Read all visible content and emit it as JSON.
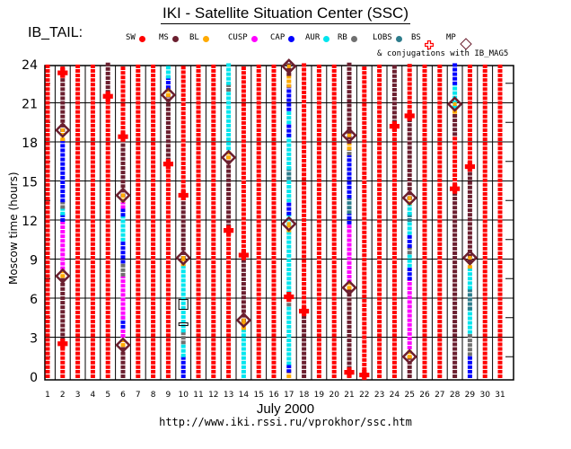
{
  "header": {
    "title": "IKI - Satellite Situation Center (SSC)",
    "satellite": "IB_TAIL:",
    "conjugations": "& conjugations with IB_MAG5"
  },
  "legend": [
    {
      "label": "SW",
      "color": "#ff0000",
      "marker": "dot"
    },
    {
      "label": "MS",
      "color": "#6b1f2f",
      "marker": "dot"
    },
    {
      "label": "BL",
      "color": "#ffaa00",
      "marker": "dot"
    },
    {
      "label": "CUSP",
      "color": "#ff00ff",
      "marker": "dot"
    },
    {
      "label": "CAP",
      "color": "#0000ff",
      "marker": "dot"
    },
    {
      "label": "AUR",
      "color": "#00e5ee",
      "marker": "dot"
    },
    {
      "label": "RB",
      "color": "#707070",
      "marker": "dot"
    },
    {
      "label": "LOBS",
      "color": "#2e7d8c",
      "marker": "dot"
    },
    {
      "label": "BS",
      "color": "#ff0000",
      "marker": "cross"
    },
    {
      "label": "MP",
      "color": "#6b1f2f",
      "marker": "diamond"
    }
  ],
  "footer": {
    "month": "July    2000",
    "url": "http://www.iki.rssi.ru/vprokhor/ssc.htm"
  },
  "chart_data": {
    "type": "scatter",
    "title": "IKI - Satellite Situation Center (SSC)",
    "xlabel": "July    2000",
    "ylabel": "Moscow  time  (hours)",
    "xlim": [
      1,
      31
    ],
    "ylim": [
      0,
      24
    ],
    "x_ticks": [
      "1",
      "2",
      "3",
      "4",
      "5",
      "6",
      "7",
      "8",
      "9",
      "10",
      "11",
      "12",
      "13",
      "14",
      "15",
      "16",
      "17",
      "18",
      "19",
      "20",
      "21",
      "22",
      "23",
      "24",
      "25",
      "26",
      "27",
      "28",
      "29",
      "30",
      "31"
    ],
    "y_ticks": [
      "0",
      "3",
      "6",
      "9",
      "12",
      "15",
      "18",
      "21",
      "24"
    ],
    "grid": true,
    "region_colors": {
      "SW": "#ff0000",
      "MS": "#6b1f2f",
      "BL": "#ffaa00",
      "CUSP": "#ff00ff",
      "CAP": "#0000ff",
      "AUR": "#00e5ee",
      "RB": "#707070",
      "LOBS": "#2e7d8c"
    },
    "days": [
      {
        "day": 1,
        "segments": [
          [
            0,
            24,
            "SW"
          ]
        ]
      },
      {
        "day": 2,
        "segments": [
          [
            0,
            2.5,
            "SW"
          ],
          [
            2.5,
            7.7,
            "MS"
          ],
          [
            7.7,
            8.3,
            "BL"
          ],
          [
            8.3,
            12,
            "CUSP"
          ],
          [
            12,
            12.5,
            "CAP"
          ],
          [
            12.5,
            13,
            "AUR"
          ],
          [
            13,
            13.5,
            "RB"
          ],
          [
            13.5,
            18.2,
            "CAP"
          ],
          [
            18.2,
            18.9,
            "BL"
          ],
          [
            18.9,
            23.3,
            "MS"
          ],
          [
            23.3,
            24,
            "SW"
          ]
        ]
      },
      {
        "day": 3,
        "segments": [
          [
            0,
            24,
            "SW"
          ]
        ]
      },
      {
        "day": 4,
        "segments": [
          [
            0,
            24,
            "SW"
          ]
        ]
      },
      {
        "day": 5,
        "segments": [
          [
            0,
            21.5,
            "SW"
          ],
          [
            21.5,
            24,
            "MS"
          ]
        ]
      },
      {
        "day": 6,
        "segments": [
          [
            0,
            2.4,
            "MS"
          ],
          [
            2.4,
            3.1,
            "BL"
          ],
          [
            3.1,
            3.8,
            "CUSP"
          ],
          [
            3.8,
            4.5,
            "CAP"
          ],
          [
            4.5,
            7.8,
            "CUSP"
          ],
          [
            7.8,
            8.8,
            "RB"
          ],
          [
            8.8,
            10.5,
            "CAP"
          ],
          [
            10.5,
            12.4,
            "AUR"
          ],
          [
            12.4,
            13,
            "CAP"
          ],
          [
            13,
            13.5,
            "CUSP"
          ],
          [
            13.5,
            13.9,
            "BL"
          ],
          [
            13.9,
            18.4,
            "MS"
          ],
          [
            18.4,
            24,
            "SW"
          ]
        ]
      },
      {
        "day": 7,
        "segments": [
          [
            0,
            24,
            "SW"
          ]
        ]
      },
      {
        "day": 8,
        "segments": [
          [
            0,
            24,
            "SW"
          ]
        ]
      },
      {
        "day": 9,
        "segments": [
          [
            0,
            16.3,
            "SW"
          ],
          [
            16.3,
            21.6,
            "MS"
          ],
          [
            21.6,
            22.2,
            "BL"
          ],
          [
            22.2,
            23,
            "CAP"
          ],
          [
            23,
            24,
            "AUR"
          ]
        ]
      },
      {
        "day": 10,
        "segments": [
          [
            0,
            1.6,
            "CAP"
          ],
          [
            1.6,
            2.6,
            "AUR"
          ],
          [
            2.6,
            3.5,
            "RB"
          ],
          [
            3.5,
            8.6,
            "AUR"
          ],
          [
            8.6,
            9.1,
            "BL"
          ],
          [
            9.1,
            13.9,
            "MS"
          ],
          [
            13.9,
            24,
            "SW"
          ]
        ]
      },
      {
        "day": 11,
        "segments": [
          [
            0,
            24,
            "SW"
          ]
        ]
      },
      {
        "day": 12,
        "segments": [
          [
            0,
            24,
            "SW"
          ]
        ]
      },
      {
        "day": 13,
        "segments": [
          [
            0,
            11.2,
            "SW"
          ],
          [
            11.2,
            16.8,
            "MS"
          ],
          [
            16.8,
            17.5,
            "BL"
          ],
          [
            17.5,
            22,
            "AUR"
          ],
          [
            22,
            22.5,
            "RB"
          ],
          [
            22.5,
            24,
            "AUR"
          ]
        ]
      },
      {
        "day": 14,
        "segments": [
          [
            0,
            3.7,
            "AUR"
          ],
          [
            3.7,
            4.3,
            "BL"
          ],
          [
            4.3,
            9.3,
            "MS"
          ],
          [
            9.3,
            24,
            "SW"
          ]
        ]
      },
      {
        "day": 15,
        "segments": [
          [
            0,
            24,
            "SW"
          ]
        ]
      },
      {
        "day": 16,
        "segments": [
          [
            0,
            24,
            "SW"
          ]
        ]
      },
      {
        "day": 17,
        "segments": [
          [
            0,
            0.4,
            "BL"
          ],
          [
            0.4,
            1,
            "CAP"
          ],
          [
            1,
            5.5,
            "AUR"
          ],
          [
            5.5,
            6.1,
            "RB"
          ],
          [
            6.1,
            11.2,
            "AUR"
          ],
          [
            11.2,
            11.7,
            "BL"
          ],
          [
            11.7,
            12.5,
            "AUR"
          ],
          [
            12.5,
            13.5,
            "CAP"
          ],
          [
            13.5,
            15.2,
            "AUR"
          ],
          [
            15.2,
            16,
            "LOBS"
          ],
          [
            16,
            18.5,
            "AUR"
          ],
          [
            18.5,
            19.5,
            "CAP"
          ],
          [
            19.5,
            20.5,
            "AUR"
          ],
          [
            20.5,
            22.3,
            "CAP"
          ],
          [
            22.3,
            23.2,
            "BL"
          ],
          [
            23.2,
            24,
            "MS"
          ]
        ]
      },
      {
        "day": 18,
        "segments": [
          [
            0,
            5,
            "MS"
          ],
          [
            5,
            24,
            "SW"
          ]
        ]
      },
      {
        "day": 19,
        "segments": [
          [
            0,
            24,
            "SW"
          ]
        ]
      },
      {
        "day": 20,
        "segments": [
          [
            0,
            24,
            "SW"
          ]
        ]
      },
      {
        "day": 21,
        "segments": [
          [
            0,
            0.3,
            "SW"
          ],
          [
            0.3,
            6.8,
            "MS"
          ],
          [
            6.8,
            7.3,
            "BL"
          ],
          [
            7.3,
            11.8,
            "CUSP"
          ],
          [
            11.8,
            12.6,
            "CAP"
          ],
          [
            12.6,
            13.8,
            "LOBS"
          ],
          [
            13.8,
            17.1,
            "CAP"
          ],
          [
            17.1,
            17.5,
            "RB"
          ],
          [
            17.5,
            18,
            "BL"
          ],
          [
            18,
            24,
            "MS"
          ]
        ]
      },
      {
        "day": 22,
        "segments": [
          [
            0,
            0.2,
            "SW"
          ],
          [
            0.2,
            24,
            "SW"
          ]
        ]
      },
      {
        "day": 23,
        "segments": [
          [
            0,
            24,
            "SW"
          ]
        ]
      },
      {
        "day": 24,
        "segments": [
          [
            0,
            19.2,
            "SW"
          ],
          [
            19.2,
            24,
            "MS"
          ]
        ]
      },
      {
        "day": 25,
        "segments": [
          [
            0,
            1.5,
            "MS"
          ],
          [
            1.5,
            2.2,
            "BL"
          ],
          [
            2.2,
            7.5,
            "CUSP"
          ],
          [
            7.5,
            8.5,
            "CAP"
          ],
          [
            8.5,
            9.5,
            "AUR"
          ],
          [
            9.5,
            10,
            "RB"
          ],
          [
            10,
            11,
            "CAP"
          ],
          [
            11,
            12,
            "AUR"
          ],
          [
            12,
            12.5,
            "LOBS"
          ],
          [
            12.5,
            13.3,
            "AUR"
          ],
          [
            13.3,
            13.7,
            "BL"
          ],
          [
            13.7,
            20,
            "MS"
          ],
          [
            20,
            24,
            "SW"
          ]
        ]
      },
      {
        "day": 26,
        "segments": [
          [
            0,
            24,
            "SW"
          ]
        ]
      },
      {
        "day": 27,
        "segments": [
          [
            0,
            24,
            "SW"
          ]
        ]
      },
      {
        "day": 28,
        "segments": [
          [
            0,
            14.4,
            "MS"
          ],
          [
            14.4,
            18.6,
            "SW"
          ],
          [
            18.6,
            20.3,
            "MS"
          ],
          [
            20.3,
            20.7,
            "BL"
          ],
          [
            20.7,
            22.5,
            "AUR"
          ],
          [
            22.5,
            24,
            "CAP"
          ]
        ]
      },
      {
        "day": 29,
        "segments": [
          [
            0,
            1.7,
            "CAP"
          ],
          [
            1.7,
            3.4,
            "RB"
          ],
          [
            3.4,
            5.2,
            "AUR"
          ],
          [
            5.2,
            6.8,
            "LOBS"
          ],
          [
            6.8,
            8.4,
            "AUR"
          ],
          [
            8.4,
            8.9,
            "BL"
          ],
          [
            8.9,
            16.1,
            "MS"
          ],
          [
            16.1,
            24,
            "SW"
          ]
        ]
      },
      {
        "day": 30,
        "segments": [
          [
            0,
            24,
            "SW"
          ]
        ]
      },
      {
        "day": 31,
        "segments": [
          [
            0,
            24,
            "SW"
          ]
        ]
      }
    ],
    "bs_crossings": [
      [
        2,
        2.5
      ],
      [
        2,
        23.3
      ],
      [
        5,
        21.5
      ],
      [
        6,
        18.4
      ],
      [
        9,
        16.3
      ],
      [
        10,
        13.9
      ],
      [
        13,
        11.2
      ],
      [
        14,
        9.3
      ],
      [
        17,
        6.1
      ],
      [
        18,
        5
      ],
      [
        21,
        0.3
      ],
      [
        22,
        0.1
      ],
      [
        24,
        19.2
      ],
      [
        25,
        20
      ],
      [
        28,
        14.4
      ],
      [
        29,
        16.1
      ]
    ],
    "mp_crossings": [
      [
        2,
        7.7
      ],
      [
        2,
        18.9
      ],
      [
        6,
        2.4
      ],
      [
        6,
        13.9
      ],
      [
        9,
        21.6
      ],
      [
        10,
        9.1
      ],
      [
        13,
        16.8
      ],
      [
        14,
        4.3
      ],
      [
        17,
        11.7
      ],
      [
        17,
        23.8
      ],
      [
        21,
        6.8
      ],
      [
        21,
        18.5
      ],
      [
        25,
        1.5
      ],
      [
        25,
        13.7
      ],
      [
        28,
        20.9
      ],
      [
        29,
        9.1
      ]
    ],
    "conjugations": [
      [
        10,
        5.3
      ],
      [
        10,
        4
      ]
    ]
  }
}
